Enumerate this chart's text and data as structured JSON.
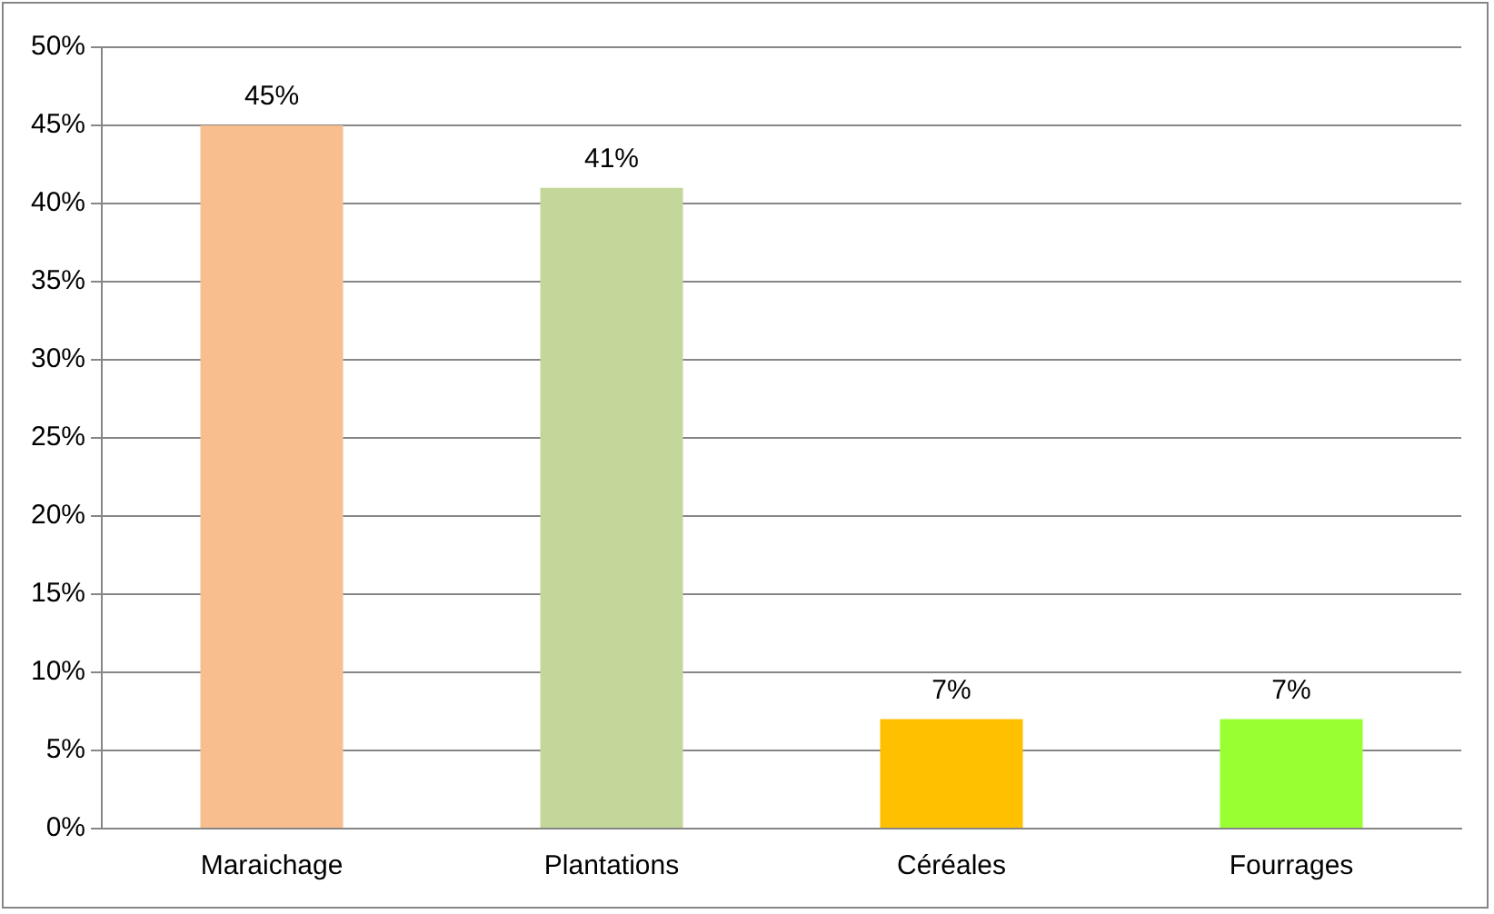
{
  "chart_data": {
    "type": "bar",
    "categories": [
      "Maraichage",
      "Plantations",
      "Céréales",
      "Fourrages"
    ],
    "values": [
      45,
      41,
      7,
      7
    ],
    "colors": [
      "#f9be8e",
      "#c4d79b",
      "#ffc000",
      "#99ff33"
    ],
    "value_labels": [
      "45%",
      "41%",
      "7%",
      "7%"
    ],
    "ylim": [
      0,
      50
    ],
    "yticks": [
      {
        "value": 0,
        "label": "0%"
      },
      {
        "value": 5,
        "label": "5%"
      },
      {
        "value": 10,
        "label": "10%"
      },
      {
        "value": 15,
        "label": "15%"
      },
      {
        "value": 20,
        "label": "20%"
      },
      {
        "value": 25,
        "label": "25%"
      },
      {
        "value": 30,
        "label": "30%"
      },
      {
        "value": 35,
        "label": "35%"
      },
      {
        "value": 40,
        "label": "40%"
      },
      {
        "value": 45,
        "label": "45%"
      },
      {
        "value": 50,
        "label": "50%"
      }
    ],
    "grid": "y",
    "legend": false
  }
}
